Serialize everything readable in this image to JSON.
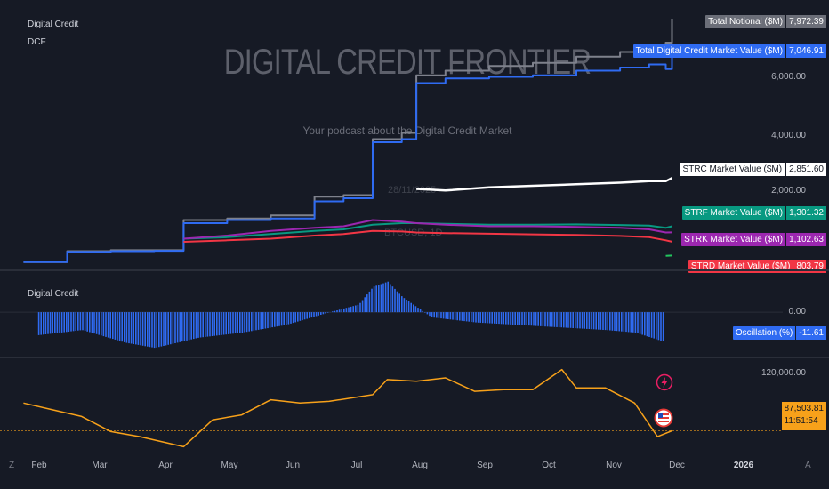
{
  "main_pane": {
    "legend_title": "Digital Credit",
    "legend_short": "DCF",
    "watermark_title": "DIGITAL CREDIT FRONTIER",
    "watermark_subtitle": "Your podcast about the Digital Credit Market",
    "watermark_date": "28/11/2025",
    "watermark_symbol": "BTCUSD, 1D",
    "axis_labels": [
      "6,000.00",
      "4,000.00",
      "2,000.00"
    ],
    "tags": [
      {
        "label": "Total Notional ($M)",
        "value": "7,972.39",
        "bg": "#6b6e78",
        "fg": "#ffffff"
      },
      {
        "label": "Total Digital Credit Market Value ($M)",
        "value": "7,046.91",
        "bg": "#2f6bf2",
        "fg": "#ffffff"
      },
      {
        "label": "STRC Market Value ($M)",
        "value": "2,851.60",
        "bg": "#ffffff",
        "fg": "#131722"
      },
      {
        "label": "STRF Market Value ($M)",
        "value": "1,301.32",
        "bg": "#089981",
        "fg": "#ffffff"
      },
      {
        "label": "STRK Market Value ($M)",
        "value": "1,102.63",
        "bg": "#9c27b0",
        "fg": "#ffffff"
      },
      {
        "label": "STRD Market Value ($M)",
        "value": "803.79",
        "bg": "#f23645",
        "fg": "#ffffff"
      }
    ]
  },
  "osc_pane": {
    "legend_title": "Digital Credit",
    "axis_label": "0.00",
    "tag": {
      "label": "Oscillation (%)",
      "value": "-11.61",
      "bg": "#2f6bf2",
      "fg": "#ffffff"
    }
  },
  "btc_pane": {
    "axis_label": "120,000.00",
    "price_tag": "87,503.81",
    "countdown": "11:51:54"
  },
  "x_axis": {
    "labels": [
      "Feb",
      "Mar",
      "Apr",
      "May",
      "Jun",
      "Jul",
      "Aug",
      "Sep",
      "Oct",
      "Nov",
      "Dec",
      "2026"
    ],
    "corner_left": "Z",
    "corner_right": "A"
  },
  "icons": [
    "lightning-icon",
    "us-flag-icon"
  ],
  "chart_data": [
    {
      "type": "line",
      "title": "Digital Credit",
      "x": [
        "2025-01-20",
        "2025-01-27",
        "2025-02-10",
        "2025-03-03",
        "2025-03-24",
        "2025-04-07",
        "2025-04-28",
        "2025-05-19",
        "2025-06-09",
        "2025-06-23",
        "2025-07-07",
        "2025-07-21",
        "2025-07-28",
        "2025-08-11",
        "2025-09-01",
        "2025-09-22",
        "2025-10-13",
        "2025-11-03",
        "2025-11-17",
        "2025-11-25",
        "2025-11-28"
      ],
      "series": [
        {
          "name": "Total Notional ($M)",
          "color": "#7e818c",
          "values": [
            150,
            150,
            500,
            530,
            530,
            1500,
            1550,
            1650,
            2250,
            2300,
            4100,
            4300,
            6150,
            6300,
            6450,
            6550,
            6750,
            6900,
            7050,
            7200,
            7972.39
          ]
        },
        {
          "name": "Total Digital Credit Market Value ($M)",
          "color": "#2f6bf2",
          "values": [
            150,
            150,
            480,
            500,
            510,
            1400,
            1500,
            1550,
            2100,
            2200,
            4000,
            4100,
            5900,
            6050,
            6100,
            6150,
            6300,
            6400,
            6500,
            6350,
            7046.91
          ]
        },
        {
          "name": "STRC Market Value ($M)",
          "color": "#ffffff",
          "values": [
            null,
            null,
            null,
            null,
            null,
            null,
            null,
            null,
            null,
            null,
            null,
            null,
            2500,
            2450,
            2550,
            2600,
            2650,
            2700,
            2750,
            2750,
            2851.6
          ]
        },
        {
          "name": "STRF Market Value ($M)",
          "color": "#089981",
          "values": [
            null,
            null,
            null,
            null,
            null,
            900,
            950,
            1050,
            1150,
            1200,
            1350,
            1400,
            1400,
            1380,
            1350,
            1350,
            1360,
            1340,
            1320,
            1250,
            1301.32
          ]
        },
        {
          "name": "STRK Market Value ($M)",
          "color": "#9c27b0",
          "values": [
            null,
            null,
            null,
            null,
            null,
            900,
            1000,
            1150,
            1250,
            1300,
            1500,
            1450,
            1400,
            1350,
            1300,
            1300,
            1280,
            1250,
            1200,
            1100,
            1102.63
          ]
        },
        {
          "name": "STRD Market Value ($M)",
          "color": "#f23645",
          "values": [
            null,
            null,
            null,
            null,
            null,
            800,
            850,
            900,
            1000,
            1050,
            1150,
            1130,
            1100,
            1080,
            1060,
            1040,
            1020,
            990,
            950,
            850,
            803.79
          ]
        },
        {
          "name": "",
          "color": "#22c55e",
          "values": [
            null,
            null,
            null,
            null,
            null,
            null,
            null,
            null,
            null,
            null,
            null,
            null,
            null,
            null,
            null,
            null,
            null,
            null,
            null,
            350,
            360
          ]
        }
      ],
      "ylim": [
        0,
        8000
      ]
    },
    {
      "type": "bar",
      "title": "Oscillation (%)",
      "x": [
        "2025-01-27",
        "2025-02-17",
        "2025-03-10",
        "2025-03-24",
        "2025-04-14",
        "2025-05-05",
        "2025-05-26",
        "2025-06-16",
        "2025-06-30",
        "2025-07-07",
        "2025-07-14",
        "2025-07-21",
        "2025-08-04",
        "2025-08-25",
        "2025-09-15",
        "2025-10-06",
        "2025-10-27",
        "2025-11-10",
        "2025-11-24"
      ],
      "values": [
        -9,
        -7,
        -12,
        -14,
        -10,
        -8,
        -5,
        0,
        3,
        10,
        12,
        6,
        -2,
        -4,
        -5,
        -6,
        -7,
        -8,
        -11.61
      ],
      "color": "#2f6bf2",
      "ylim": [
        -16,
        14
      ]
    },
    {
      "type": "line",
      "title": "BTCUSD, 1D",
      "x": [
        "2025-01-20",
        "2025-02-03",
        "2025-02-17",
        "2025-03-03",
        "2025-03-17",
        "2025-04-07",
        "2025-04-21",
        "2025-05-05",
        "2025-05-19",
        "2025-06-02",
        "2025-06-16",
        "2025-07-07",
        "2025-07-14",
        "2025-07-28",
        "2025-08-11",
        "2025-08-25",
        "2025-09-08",
        "2025-09-22",
        "2025-10-06",
        "2025-10-13",
        "2025-10-27",
        "2025-11-10",
        "2025-11-21",
        "2025-11-28"
      ],
      "series": [
        {
          "name": "BTCUSD",
          "color": "#f7a11a",
          "values": [
            104000,
            100000,
            96000,
            87000,
            84000,
            78000,
            94000,
            97000,
            106000,
            104000,
            105000,
            109000,
            118000,
            117000,
            119000,
            111000,
            112000,
            112000,
            124000,
            113000,
            113000,
            104000,
            84000,
            87503.81
          ]
        }
      ],
      "ylim": [
        74000,
        128000
      ]
    }
  ]
}
